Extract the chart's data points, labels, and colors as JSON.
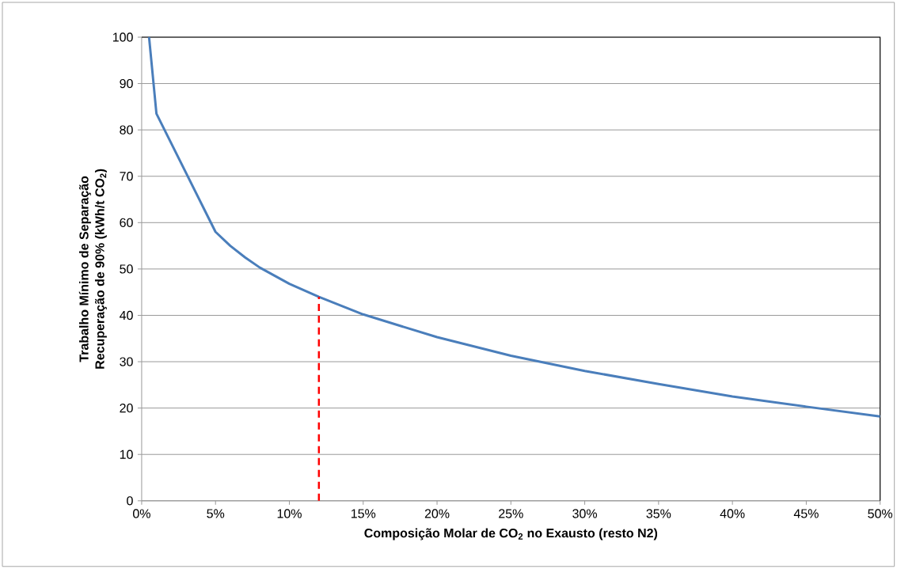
{
  "chart_data": {
    "type": "line",
    "xlabel": "Composição Molar de CO$_{2}$ no Exausto (resto N2)",
    "ylabel": "Trabalho Mínimo de Separação\nRecuperação de 90% (kWh/t CO$_{2}$)",
    "series": [
      {
        "color": "#4a7ebb",
        "x": [
          0.5,
          1,
          5,
          6,
          7,
          8,
          10,
          12,
          15,
          20,
          25,
          30,
          35,
          40,
          45,
          50
        ],
        "values": [
          100,
          83.5,
          58,
          55,
          52.5,
          50.3,
          46.8,
          44,
          40.2,
          35.3,
          31.3,
          28,
          25.2,
          22.5,
          20.3,
          18.2
        ]
      },
      {
        "color": "#ff0000",
        "line_style": "dashed",
        "x": [
          12,
          12
        ],
        "values": [
          0,
          44
        ]
      }
    ],
    "xlim": [
      0,
      50
    ],
    "ylim": [
      0,
      100
    ],
    "xticks": [
      {
        "value": 0,
        "label": "0%"
      },
      {
        "value": 5,
        "label": "5%"
      },
      {
        "value": 10,
        "label": "10%"
      },
      {
        "value": 15,
        "label": "15%"
      },
      {
        "value": 20,
        "label": "20%"
      },
      {
        "value": 25,
        "label": "25%"
      },
      {
        "value": 30,
        "label": "30%"
      },
      {
        "value": 35,
        "label": "35%"
      },
      {
        "value": 40,
        "label": "40%"
      },
      {
        "value": 45,
        "label": "45%"
      },
      {
        "value": 50,
        "label": "50%"
      }
    ],
    "yticks": [
      0,
      10,
      20,
      30,
      40,
      50,
      60,
      70,
      80,
      90,
      100
    ],
    "grid": "y",
    "marker": "none",
    "line_style": "solid"
  }
}
